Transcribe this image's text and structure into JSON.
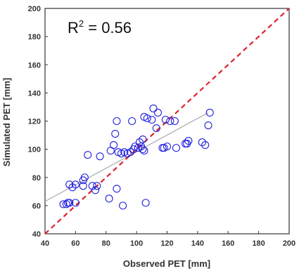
{
  "chart_data": {
    "type": "scatter",
    "xlabel": "Observed PET [mm]",
    "ylabel": "Simulated PET [mm]",
    "xlim": [
      40,
      200
    ],
    "ylim": [
      40,
      200
    ],
    "x_ticks": [
      "40",
      "60",
      "80",
      "100",
      "120",
      "140",
      "160",
      "180",
      "200"
    ],
    "y_ticks": [
      "40",
      "60",
      "80",
      "100",
      "120",
      "140",
      "160",
      "180",
      "200"
    ],
    "grid": false,
    "legend": "none",
    "annotation": {
      "r2_base": "R",
      "r2_exp": "2",
      "r2_value": " = 0.56"
    },
    "colors": {
      "points": "#2222dd",
      "one_to_one": "#e0202a",
      "trend": "#aaaaaa",
      "frame": "#333333"
    },
    "one_to_one": {
      "x": [
        40,
        200
      ],
      "y": [
        40,
        200
      ],
      "style": "dashed"
    },
    "trend": {
      "x": [
        40,
        147
      ],
      "y": [
        63,
        126
      ]
    },
    "points": [
      {
        "x": 52,
        "y": 61
      },
      {
        "x": 54,
        "y": 61
      },
      {
        "x": 56,
        "y": 62
      },
      {
        "x": 55,
        "y": 62
      },
      {
        "x": 56,
        "y": 75
      },
      {
        "x": 58,
        "y": 73
      },
      {
        "x": 60,
        "y": 75
      },
      {
        "x": 60,
        "y": 62
      },
      {
        "x": 65,
        "y": 74
      },
      {
        "x": 65,
        "y": 78
      },
      {
        "x": 66,
        "y": 80
      },
      {
        "x": 68,
        "y": 96
      },
      {
        "x": 71,
        "y": 74
      },
      {
        "x": 73,
        "y": 71
      },
      {
        "x": 74,
        "y": 74
      },
      {
        "x": 76,
        "y": 95
      },
      {
        "x": 82,
        "y": 65
      },
      {
        "x": 83,
        "y": 99
      },
      {
        "x": 85,
        "y": 103
      },
      {
        "x": 86,
        "y": 111
      },
      {
        "x": 87,
        "y": 120
      },
      {
        "x": 87,
        "y": 72
      },
      {
        "x": 88,
        "y": 98
      },
      {
        "x": 90,
        "y": 97
      },
      {
        "x": 91,
        "y": 60
      },
      {
        "x": 92,
        "y": 98
      },
      {
        "x": 94,
        "y": 97
      },
      {
        "x": 96,
        "y": 98
      },
      {
        "x": 97,
        "y": 120
      },
      {
        "x": 98,
        "y": 100
      },
      {
        "x": 99,
        "y": 102
      },
      {
        "x": 101,
        "y": 101
      },
      {
        "x": 102,
        "y": 105
      },
      {
        "x": 103,
        "y": 102
      },
      {
        "x": 104,
        "y": 107
      },
      {
        "x": 104,
        "y": 100
      },
      {
        "x": 105,
        "y": 123
      },
      {
        "x": 105,
        "y": 99
      },
      {
        "x": 106,
        "y": 62
      },
      {
        "x": 107,
        "y": 122
      },
      {
        "x": 110,
        "y": 121
      },
      {
        "x": 111,
        "y": 129
      },
      {
        "x": 113,
        "y": 115
      },
      {
        "x": 114,
        "y": 126
      },
      {
        "x": 117,
        "y": 101
      },
      {
        "x": 118,
        "y": 101
      },
      {
        "x": 119,
        "y": 121
      },
      {
        "x": 120,
        "y": 102
      },
      {
        "x": 122,
        "y": 120
      },
      {
        "x": 125,
        "y": 120
      },
      {
        "x": 126,
        "y": 101
      },
      {
        "x": 132,
        "y": 104
      },
      {
        "x": 133,
        "y": 104
      },
      {
        "x": 134,
        "y": 106
      },
      {
        "x": 143,
        "y": 105
      },
      {
        "x": 145,
        "y": 103
      },
      {
        "x": 147,
        "y": 117
      },
      {
        "x": 148,
        "y": 126
      }
    ]
  }
}
